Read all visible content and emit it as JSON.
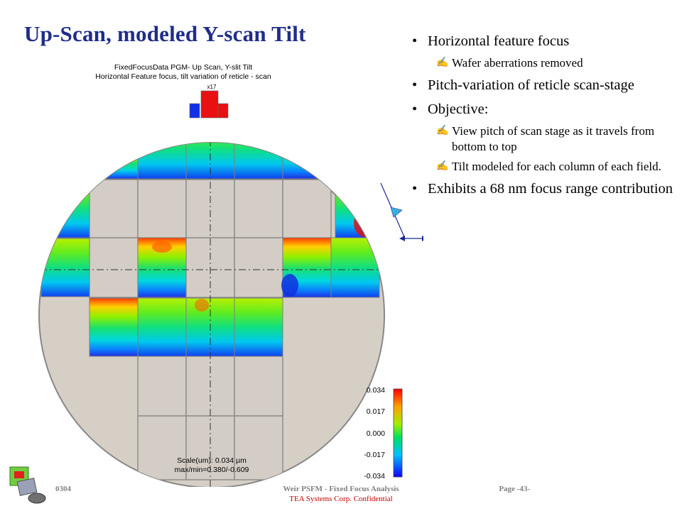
{
  "slide": {
    "title": "Up-Scan, modeled  Y-scan Tilt"
  },
  "figure": {
    "plot_title_1": "FixedFocusData PGM- Up Scan, Y-slit Tilt",
    "plot_title_2": "Horizontal Feature focus, tilt variation of reticle - scan",
    "top_label": "x17",
    "colorbar_ticks": [
      "0.034",
      "0.017",
      "0.000",
      "-0.017",
      "-0.034"
    ],
    "scale_line": "Scale(um): 0.034 µm",
    "maxmin_line": "max/min=0.380/-0.609",
    "colors": {
      "wafer": "#d6cfc6",
      "grid_border": "#808080",
      "title_blue": "#1f2d8a"
    }
  },
  "bullets": [
    {
      "level": 1,
      "text": "Horizontal feature focus"
    },
    {
      "level": 2,
      "icon": "pen-icon",
      "text": "Wafer aberrations removed"
    },
    {
      "level": 1,
      "text": "Pitch-variation of reticle scan-stage"
    },
    {
      "level": 1,
      "text": "Objective:"
    },
    {
      "level": 2,
      "icon": "pen-icon",
      "text": "View pitch of scan stage as it travels from bottom to top"
    },
    {
      "level": 2,
      "icon": "pen-icon",
      "text": "Tilt modeled for each column of each field."
    },
    {
      "level": 1,
      "text": "Exhibits a 68 nm focus range contribution"
    }
  ],
  "footer": {
    "left": "0304",
    "center": "Weir PSFM - Fixed Focus Analysis",
    "right": "Page -43-",
    "sub": "TEA Systems Corp. Confidential"
  }
}
